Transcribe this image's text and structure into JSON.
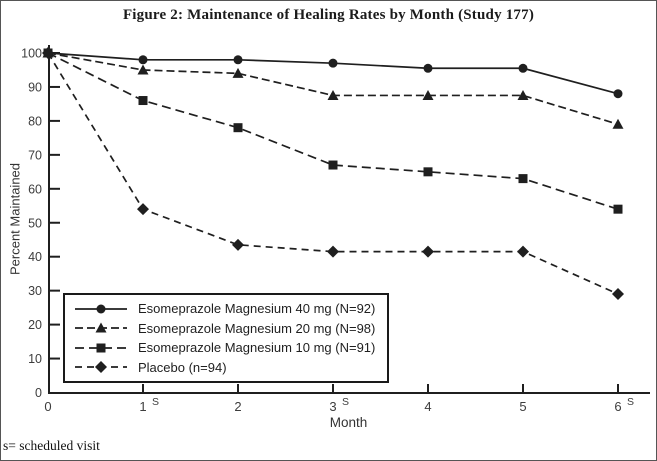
{
  "figure": {
    "title": "Figure 2: Maintenance of Healing Rates by Month (Study 177)",
    "footnote": "s= scheduled visit",
    "xlabel": "Month",
    "ylabel": "Percent Maintained"
  },
  "chart_data": {
    "type": "line",
    "title": "Figure 2: Maintenance of Healing Rates by Month (Study 177)",
    "xlabel": "Month",
    "ylabel": "Percent Maintained",
    "x": [
      0,
      1,
      2,
      3,
      4,
      5,
      6
    ],
    "x_tick_labels": [
      "0",
      "1",
      "2",
      "3",
      "4",
      "5",
      "6"
    ],
    "x_tick_superscripts": [
      "",
      "S",
      "",
      "S",
      "",
      "",
      "S"
    ],
    "y_ticks": [
      0,
      10,
      20,
      30,
      40,
      50,
      60,
      70,
      80,
      90,
      100
    ],
    "ylim": [
      0,
      100
    ],
    "xlim": [
      0,
      6
    ],
    "grid": false,
    "legend_position": "lower-left",
    "line_color": "#1f1f1f",
    "series": [
      {
        "name": "Esomeprazole Magnesium 40 mg (N=92)",
        "marker": "circle",
        "line": "solid",
        "dash": "",
        "values": [
          100,
          98,
          98,
          97,
          95.5,
          95.5,
          88
        ]
      },
      {
        "name": "Esomeprazole Magnesium 20 mg (N=98)",
        "marker": "triangle",
        "line": "dashed",
        "dash": "8 4",
        "values": [
          100,
          95,
          94,
          87.5,
          87.5,
          87.5,
          79
        ]
      },
      {
        "name": "Esomeprazole Magnesium 10 mg (N=91)",
        "marker": "square",
        "line": "dashed",
        "dash": "9 5",
        "values": [
          100,
          86,
          78,
          67,
          65,
          63,
          54
        ]
      },
      {
        "name": "Placebo (n=94)",
        "marker": "diamond",
        "line": "dashed",
        "dash": "7 5",
        "values": [
          100,
          54,
          43.5,
          41.5,
          41.5,
          41.5,
          29
        ]
      }
    ]
  }
}
